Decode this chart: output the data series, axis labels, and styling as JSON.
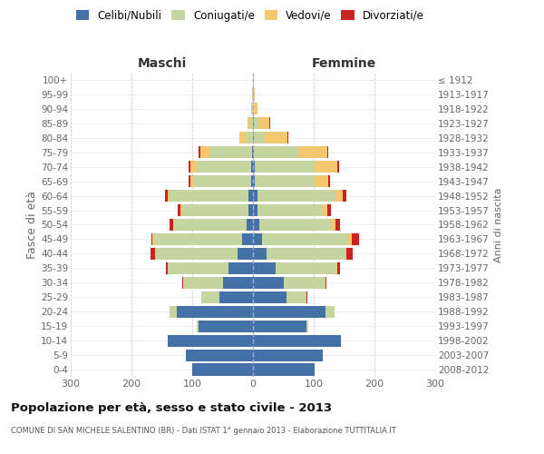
{
  "age_groups_bottom_to_top": [
    "0-4",
    "5-9",
    "10-14",
    "15-19",
    "20-24",
    "25-29",
    "30-34",
    "35-39",
    "40-44",
    "45-49",
    "50-54",
    "55-59",
    "60-64",
    "65-69",
    "70-74",
    "75-79",
    "80-84",
    "85-89",
    "90-94",
    "95-99",
    "100+"
  ],
  "birth_years_bottom_to_top": [
    "2008-2012",
    "2003-2007",
    "1998-2002",
    "1993-1997",
    "1988-1992",
    "1983-1987",
    "1978-1982",
    "1973-1977",
    "1968-1972",
    "1963-1967",
    "1958-1962",
    "1953-1957",
    "1948-1952",
    "1943-1947",
    "1938-1942",
    "1933-1937",
    "1928-1932",
    "1923-1927",
    "1918-1922",
    "1913-1917",
    "≤ 1912"
  ],
  "males_celibi": [
    100,
    110,
    140,
    90,
    125,
    55,
    50,
    40,
    25,
    18,
    10,
    7,
    8,
    3,
    3,
    2,
    0,
    0,
    0,
    0,
    0
  ],
  "males_coniugati": [
    0,
    0,
    0,
    2,
    12,
    30,
    65,
    100,
    135,
    145,
    120,
    110,
    130,
    95,
    90,
    70,
    12,
    5,
    2,
    1,
    0
  ],
  "males_vedovi": [
    0,
    0,
    0,
    0,
    0,
    0,
    0,
    1,
    1,
    2,
    2,
    2,
    3,
    5,
    10,
    15,
    10,
    4,
    1,
    0,
    0
  ],
  "males_divorziati": [
    0,
    0,
    0,
    0,
    0,
    0,
    2,
    2,
    8,
    2,
    5,
    5,
    4,
    3,
    3,
    2,
    1,
    0,
    0,
    0,
    0
  ],
  "females_nubili": [
    102,
    115,
    145,
    88,
    120,
    55,
    50,
    38,
    22,
    15,
    10,
    7,
    8,
    3,
    3,
    2,
    1,
    1,
    0,
    0,
    0
  ],
  "females_coniugate": [
    0,
    0,
    0,
    3,
    15,
    33,
    68,
    100,
    130,
    142,
    118,
    108,
    128,
    98,
    98,
    72,
    18,
    8,
    2,
    1,
    0
  ],
  "females_vedove": [
    0,
    0,
    0,
    0,
    0,
    0,
    1,
    1,
    2,
    5,
    8,
    8,
    12,
    23,
    38,
    48,
    38,
    18,
    5,
    2,
    1
  ],
  "females_divorziate": [
    0,
    0,
    0,
    0,
    0,
    1,
    2,
    5,
    10,
    12,
    8,
    5,
    5,
    3,
    3,
    2,
    1,
    1,
    0,
    0,
    0
  ],
  "colors_celibi": "#4472a8",
  "colors_coniugati": "#c5d5a0",
  "colors_vedovi": "#f5c870",
  "colors_divorziati": "#cc2222",
  "xlim": 300,
  "title": "Popolazione per età, sesso e stato civile - 2013",
  "subtitle": "COMUNE DI SAN MICHELE SALENTINO (BR) - Dati ISTAT 1° gennaio 2013 - Elaborazione TUTTITALIA.IT",
  "ylabel": "Fasce di età",
  "ylabel_right": "Anni di nascita",
  "legend_labels": [
    "Celibi/Nubili",
    "Coniugati/e",
    "Vedovi/e",
    "Divorziati/e"
  ],
  "maschi_label": "Maschi",
  "femmine_label": "Femmine",
  "bg_color": "#ffffff"
}
